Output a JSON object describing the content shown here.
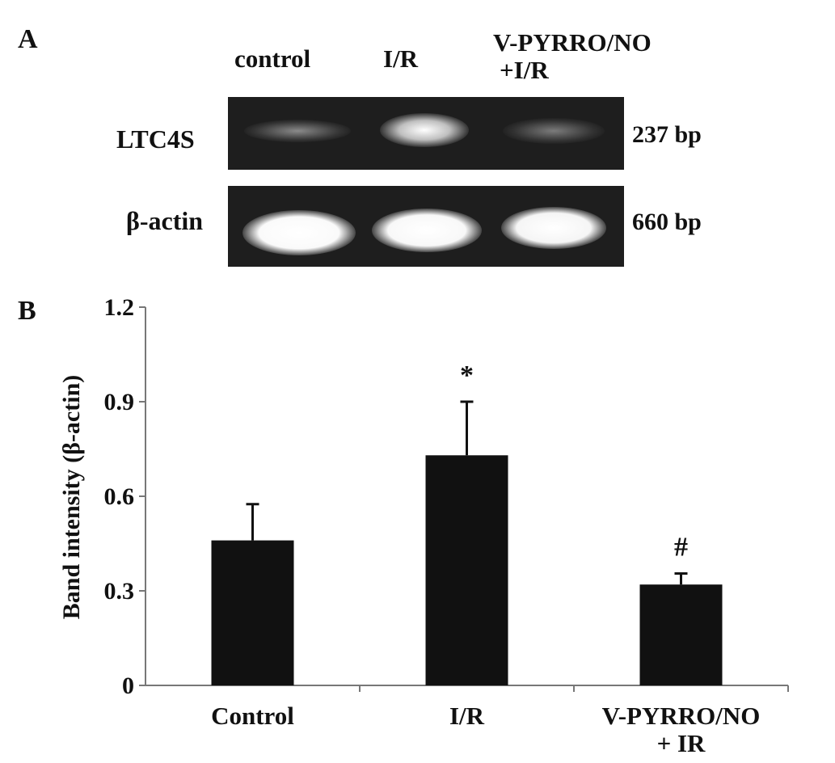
{
  "panel_a": {
    "label": "A",
    "lanes": [
      {
        "line1": "control",
        "line2": ""
      },
      {
        "line1": "I/R",
        "line2": ""
      },
      {
        "line1": "V-PYRRO/NO",
        "line2": "+I/R"
      }
    ],
    "rows": [
      {
        "label": "LTC4S",
        "size": "237 bp",
        "band_intensity": [
          0.25,
          0.8,
          0.2
        ]
      },
      {
        "label": "β-actin",
        "size": "660 bp",
        "band_intensity": [
          1.0,
          0.95,
          0.95
        ]
      }
    ]
  },
  "panel_b": {
    "label": "B"
  },
  "chart_data": {
    "type": "bar",
    "title": "",
    "xlabel": "",
    "ylabel": "Band intensity (β-actin)",
    "categories": [
      {
        "line1": "Control",
        "line2": ""
      },
      {
        "line1": "I/R",
        "line2": ""
      },
      {
        "line1": "V-PYRRO/NO",
        "line2": "+ IR"
      }
    ],
    "values": [
      0.46,
      0.73,
      0.32
    ],
    "errors": [
      0.115,
      0.17,
      0.035
    ],
    "annotations": [
      "",
      "*",
      "#"
    ],
    "ylim": [
      0,
      1.2
    ],
    "yticks": [
      "0",
      "0.3",
      "0.6",
      "0.9",
      "1.2"
    ],
    "ytick_values": [
      0,
      0.3,
      0.6,
      0.9,
      1.2
    ],
    "bar_color": "#111111",
    "grid": false,
    "legend": "none"
  }
}
